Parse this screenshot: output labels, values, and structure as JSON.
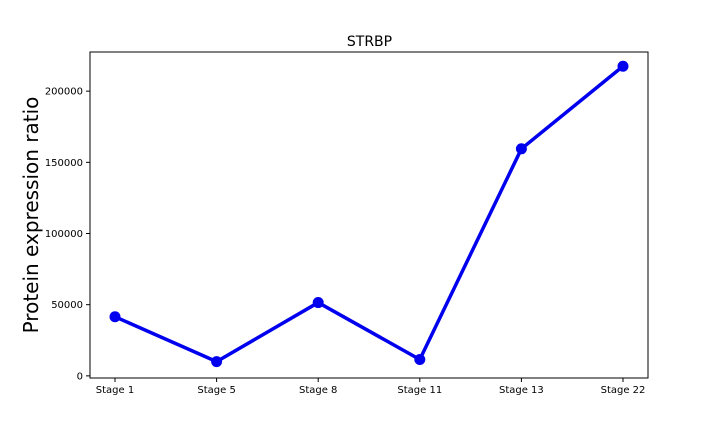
{
  "chart_data": {
    "type": "line",
    "title": "STRBP",
    "xlabel": "",
    "ylabel": "Protein expression ratio",
    "categories": [
      "Stage 1",
      "Stage 5",
      "Stage 8",
      "Stage 11",
      "Stage 13",
      "Stage 22"
    ],
    "series": [
      {
        "values": [
          41500,
          10000,
          51500,
          11500,
          159500,
          217500
        ]
      }
    ],
    "ylim": [
      -1500,
      227500
    ],
    "yticks": [
      0,
      50000,
      100000,
      150000,
      200000
    ],
    "grid": false,
    "legend": "none",
    "colors": {
      "line": "#0000ee",
      "marker": "#0000ee"
    }
  }
}
